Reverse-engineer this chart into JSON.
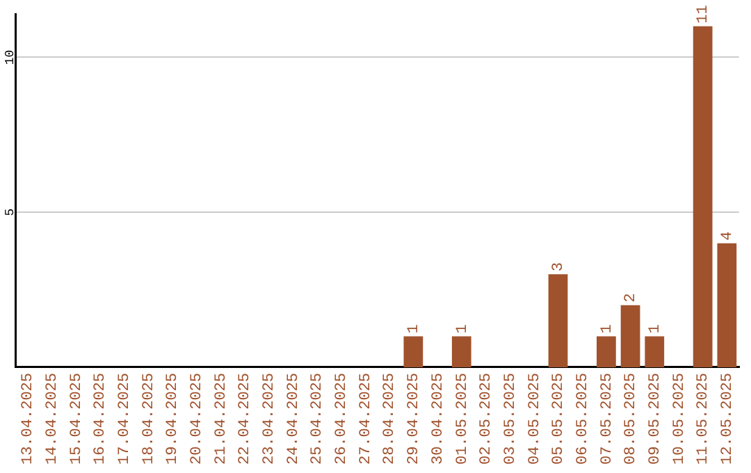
{
  "chart_data": {
    "type": "bar",
    "categories": [
      "13.04.2025",
      "14.04.2025",
      "15.04.2025",
      "16.04.2025",
      "17.04.2025",
      "18.04.2025",
      "19.04.2025",
      "20.04.2025",
      "21.04.2025",
      "22.04.2025",
      "23.04.2025",
      "24.04.2025",
      "25.04.2025",
      "26.04.2025",
      "27.04.2025",
      "28.04.2025",
      "29.04.2025",
      "30.04.2025",
      "01.05.2025",
      "02.05.2025",
      "03.05.2025",
      "04.05.2025",
      "05.05.2025",
      "06.05.2025",
      "07.05.2025",
      "08.05.2025",
      "09.05.2025",
      "10.05.2025",
      "11.05.2025",
      "12.05.2025"
    ],
    "values": [
      0,
      0,
      0,
      0,
      0,
      0,
      0,
      0,
      0,
      0,
      0,
      0,
      0,
      0,
      0,
      0,
      1,
      0,
      1,
      0,
      0,
      0,
      3,
      0,
      1,
      2,
      1,
      0,
      11,
      4
    ],
    "value_labels": [
      null,
      null,
      null,
      null,
      null,
      null,
      null,
      null,
      null,
      null,
      null,
      null,
      null,
      null,
      null,
      null,
      "1",
      null,
      "1",
      null,
      null,
      null,
      "3",
      null,
      "1",
      "2",
      "1",
      null,
      "11",
      "4"
    ],
    "color": "#a0522d",
    "ylim": [
      0,
      11.4
    ],
    "yticks": [
      5,
      10
    ],
    "grid": "y",
    "legend": false
  }
}
